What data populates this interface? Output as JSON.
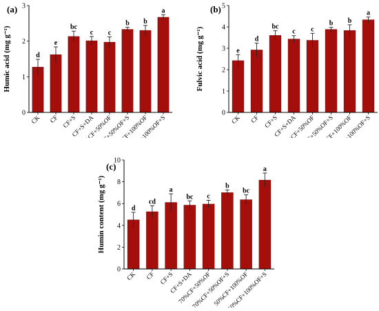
{
  "colors": {
    "bar": "#a50f0b",
    "bar_edge": "#7a0a07",
    "error": "#222222",
    "axis": "#000000"
  },
  "chart_data": [
    {
      "type": "bar",
      "panel_label": "(a)",
      "ylabel": "Humic acid (mg g⁻¹)",
      "xlabel": "",
      "categories": [
        "CK",
        "CF",
        "CF+S",
        "CF+S+DA",
        "70%CF+50%OF",
        "70%CF+50%OF+S",
        "50%CF+100%OF",
        "50%CF+100%OF+S"
      ],
      "values": [
        1.27,
        1.62,
        2.13,
        2.01,
        1.97,
        2.33,
        2.3,
        2.67
      ],
      "errors": [
        0.22,
        0.22,
        0.15,
        0.12,
        0.15,
        0.06,
        0.14,
        0.07
      ],
      "letters": [
        "d",
        "e",
        "bc",
        "c",
        "c",
        "b",
        "b",
        "a"
      ],
      "ylim": [
        0,
        3
      ],
      "yticks": [
        "0",
        "1",
        "2",
        "3"
      ]
    },
    {
      "type": "bar",
      "panel_label": "(b)",
      "ylabel": "Fulvic acid (mg g⁻¹)",
      "xlabel": "",
      "categories": [
        "CK",
        "CF",
        "CF+S",
        "CF+S+DA",
        "70%CF+50%OF",
        "70%CF+50%OF+S",
        "50%CF+100%OF",
        "50%CF+100%OF+S"
      ],
      "values": [
        2.42,
        2.92,
        3.6,
        3.43,
        3.37,
        3.88,
        3.83,
        4.33
      ],
      "errors": [
        0.28,
        0.32,
        0.22,
        0.16,
        0.33,
        0.1,
        0.27,
        0.13
      ],
      "letters": [
        "e",
        "d",
        "bc",
        "c",
        "c",
        "b",
        "b",
        "a"
      ],
      "ylim": [
        0,
        5
      ],
      "yticks": [
        "0",
        "1",
        "2",
        "3",
        "4",
        "5"
      ]
    },
    {
      "type": "bar",
      "panel_label": "(c)",
      "ylabel": "Humin content (mg g⁻¹)",
      "xlabel": "",
      "categories": [
        "CK",
        "CF",
        "CF+S",
        "CF+S+DA",
        "70%CF+50%OF",
        "70%CF+50%OF+S",
        "50%CF+100%OF",
        "50%CF+100%OF+S"
      ],
      "values": [
        4.5,
        5.25,
        6.1,
        5.85,
        5.95,
        7.0,
        6.35,
        8.15
      ],
      "errors": [
        0.7,
        0.55,
        0.8,
        0.4,
        0.35,
        0.25,
        0.45,
        0.65
      ],
      "letters": [
        "d",
        "cd",
        "a",
        "bc",
        "c",
        "b",
        "bc",
        "a"
      ],
      "ylim": [
        0,
        10
      ],
      "yticks": [
        "0",
        "2",
        "4",
        "6",
        "8",
        "10"
      ]
    }
  ]
}
